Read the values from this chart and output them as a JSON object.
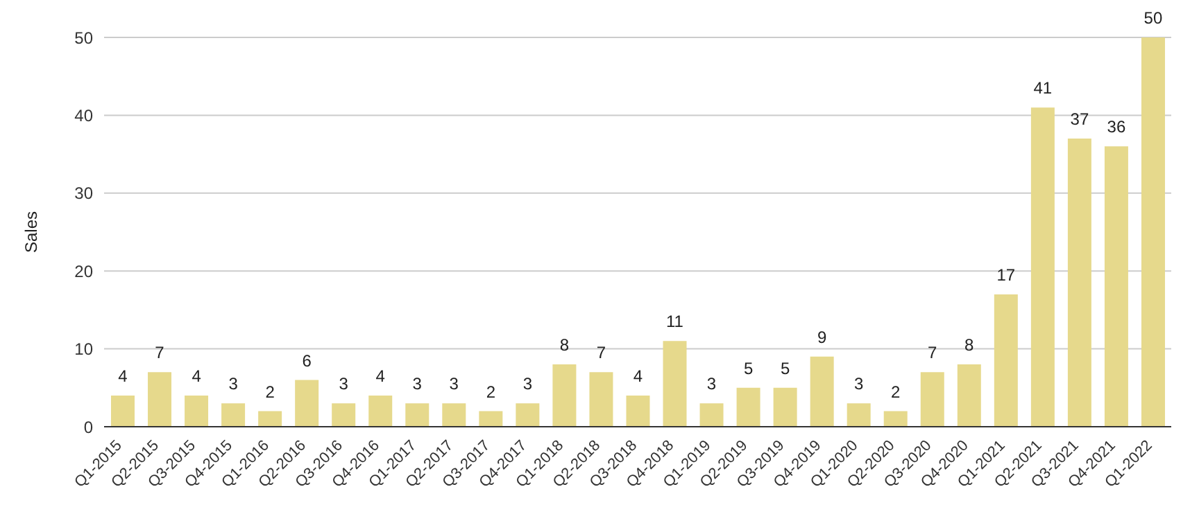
{
  "chart_data": {
    "type": "bar",
    "ylabel": "Sales",
    "categories": [
      "Q1-2015",
      "Q2-2015",
      "Q3-2015",
      "Q4-2015",
      "Q1-2016",
      "Q2-2016",
      "Q3-2016",
      "Q4-2016",
      "Q1-2017",
      "Q2-2017",
      "Q3-2017",
      "Q4-2017",
      "Q1-2018",
      "Q2-2018",
      "Q3-2018",
      "Q4-2018",
      "Q1-2019",
      "Q2-2019",
      "Q3-2019",
      "Q4-2019",
      "Q1-2020",
      "Q2-2020",
      "Q3-2020",
      "Q4-2020",
      "Q1-2021",
      "Q2-2021",
      "Q3-2021",
      "Q4-2021",
      "Q1-2022"
    ],
    "values": [
      4,
      7,
      4,
      3,
      2,
      6,
      3,
      4,
      3,
      3,
      2,
      3,
      8,
      7,
      4,
      11,
      3,
      5,
      5,
      9,
      3,
      2,
      7,
      8,
      17,
      41,
      37,
      36,
      50
    ],
    "color": "#e6d98c",
    "ylim": [
      0,
      50
    ],
    "yticks": [
      0,
      10,
      20,
      30,
      40,
      50
    ],
    "grid": "y",
    "data_labels": true
  }
}
